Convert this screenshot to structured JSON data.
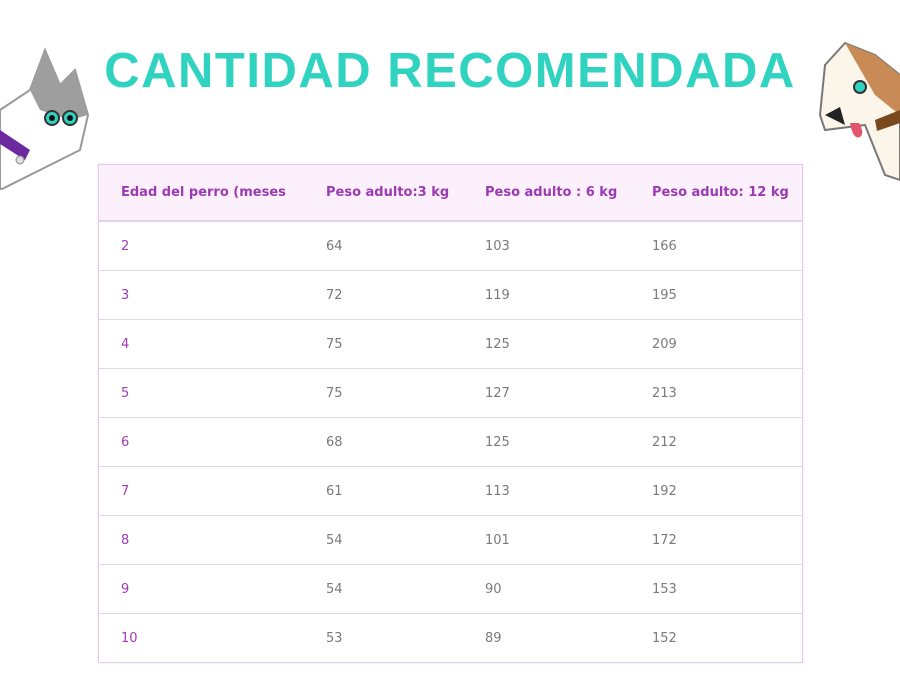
{
  "header": {
    "title": "CANTIDAD RECOMENDADA"
  },
  "table": {
    "columns": [
      "Edad del perro (meses",
      "Peso adulto:3 kg",
      "Peso adulto : 6 kg",
      "Peso adulto: 12 kg"
    ],
    "rows": [
      [
        2,
        64,
        103,
        166
      ],
      [
        3,
        72,
        119,
        195
      ],
      [
        4,
        75,
        125,
        209
      ],
      [
        5,
        75,
        127,
        213
      ],
      [
        6,
        68,
        125,
        212
      ],
      [
        7,
        61,
        113,
        192
      ],
      [
        8,
        54,
        101,
        172
      ],
      [
        9,
        54,
        90,
        153
      ],
      [
        10,
        53,
        89,
        152
      ]
    ]
  }
}
